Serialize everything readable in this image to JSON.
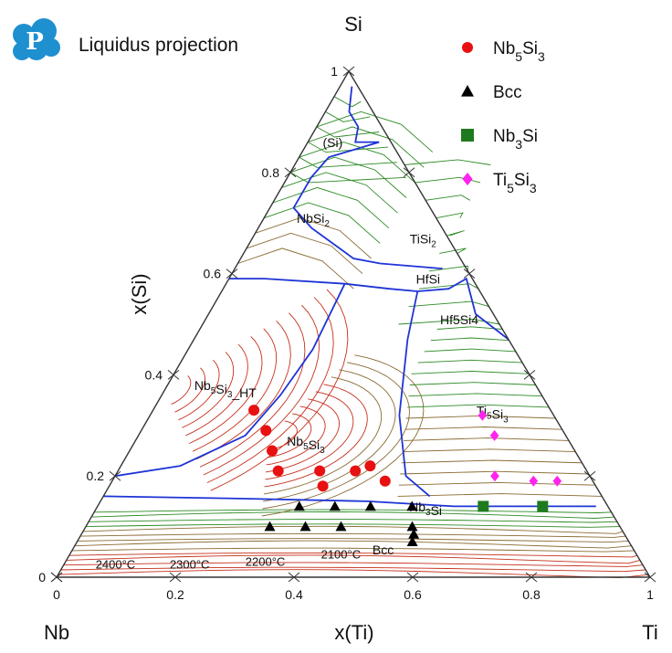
{
  "chart_data": {
    "type": "scatter",
    "subtype": "ternary",
    "title": "Liquidus projection",
    "corners": {
      "top": "Si",
      "left": "Nb",
      "right": "Ti"
    },
    "axes": {
      "x": {
        "label": "x(Ti)",
        "range": [
          0,
          1
        ],
        "ticks": [
          "0",
          "0.2",
          "0.4",
          "0.6",
          "0.8",
          "1"
        ]
      },
      "y": {
        "label": "x(Si)",
        "range": [
          0,
          1
        ],
        "ticks": [
          "0",
          "0.2",
          "0.4",
          "0.6",
          "0.8",
          "1"
        ]
      }
    },
    "regions": [
      {
        "label": "(Si)",
        "ti": 0.03,
        "si": 0.85
      },
      {
        "label": "NbSi",
        "sub": "2",
        "ti": 0.06,
        "si": 0.7
      },
      {
        "label": "TiSi",
        "sub": "2",
        "ti": 0.27,
        "si": 0.66
      },
      {
        "label": "HfSi",
        "ti": 0.32,
        "si": 0.58
      },
      {
        "label": "Hf5Si4",
        "ti": 0.4,
        "si": 0.5
      },
      {
        "label": "Nb",
        "sub": "5",
        "label2": "Si",
        "sub2": "3",
        "label3": "_HT",
        "ti": 0.05,
        "si": 0.37
      },
      {
        "label": "Ti",
        "sub": "5",
        "label2": "Si",
        "sub2": "3",
        "ti": 0.55,
        "si": 0.32
      },
      {
        "label": "Nb",
        "sub": "5",
        "label2": "Si",
        "sub2": "3",
        "ti": 0.26,
        "si": 0.26
      },
      {
        "label": "Nb",
        "sub": "3",
        "label2": "Si",
        "ti": 0.53,
        "si": 0.13
      },
      {
        "label": "Bcc",
        "ti": 0.51,
        "si": 0.045
      }
    ],
    "isotherm_labels": [
      "2400°C",
      "2300°C",
      "2200°C",
      "2100°C"
    ],
    "series": [
      {
        "name": "Nb5Si3",
        "legend": {
          "base": "Nb",
          "s1": "5",
          "mid": "Si",
          "s2": "3"
        },
        "marker": "circle",
        "color": "#e81010",
        "points": [
          {
            "ti": 0.17,
            "si": 0.33
          },
          {
            "ti": 0.21,
            "si": 0.29
          },
          {
            "ti": 0.24,
            "si": 0.25
          },
          {
            "ti": 0.27,
            "si": 0.21
          },
          {
            "ti": 0.34,
            "si": 0.21
          },
          {
            "ti": 0.36,
            "si": 0.18
          },
          {
            "ti": 0.4,
            "si": 0.21
          },
          {
            "ti": 0.42,
            "si": 0.22
          },
          {
            "ti": 0.46,
            "si": 0.19
          }
        ]
      },
      {
        "name": "Bcc",
        "legend": {
          "base": "Bcc",
          "s1": "",
          "mid": "",
          "s2": ""
        },
        "marker": "triangle",
        "color": "#000000",
        "points": [
          {
            "ti": 0.34,
            "si": 0.14
          },
          {
            "ti": 0.4,
            "si": 0.14
          },
          {
            "ti": 0.46,
            "si": 0.14
          },
          {
            "ti": 0.53,
            "si": 0.14
          },
          {
            "ti": 0.31,
            "si": 0.1
          },
          {
            "ti": 0.37,
            "si": 0.1
          },
          {
            "ti": 0.43,
            "si": 0.1
          },
          {
            "ti": 0.55,
            "si": 0.1
          },
          {
            "ti": 0.56,
            "si": 0.085
          },
          {
            "ti": 0.565,
            "si": 0.07
          }
        ]
      },
      {
        "name": "Nb3Si",
        "legend": {
          "base": "Nb",
          "s1": "3",
          "mid": "Si",
          "s2": ""
        },
        "marker": "square",
        "color": "#1f7a1f",
        "points": [
          {
            "ti": 0.65,
            "si": 0.14
          },
          {
            "ti": 0.75,
            "si": 0.14
          }
        ]
      },
      {
        "name": "Ti5Si3",
        "legend": {
          "base": "Ti",
          "s1": "5",
          "mid": "Si",
          "s2": "3"
        },
        "marker": "diamond",
        "color": "#ff22ee",
        "points": [
          {
            "ti": 0.56,
            "si": 0.32
          },
          {
            "ti": 0.6,
            "si": 0.28
          },
          {
            "ti": 0.64,
            "si": 0.2
          },
          {
            "ti": 0.71,
            "si": 0.19
          },
          {
            "ti": 0.75,
            "si": 0.19
          }
        ]
      }
    ],
    "colors": {
      "boundary": "#1e34d6",
      "isotherm_hot": "#c62f1c",
      "isotherm_mid": "#8a6a32",
      "isotherm_cool": "#2d8a24",
      "frame": "#333333",
      "logo": "#1e90d0"
    }
  }
}
